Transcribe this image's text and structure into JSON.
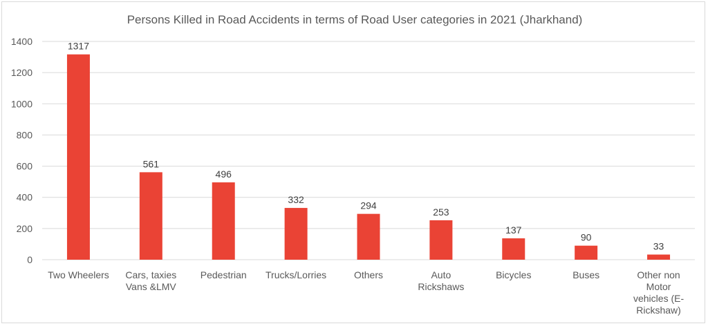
{
  "chart_data": {
    "type": "bar",
    "title": "Persons Killed  in Road Accidents in terms of Road User categories in 2021 (Jharkhand)",
    "categories": [
      [
        "Two Wheelers"
      ],
      [
        "Cars, taxies",
        "Vans &LMV"
      ],
      [
        "Pedestrian"
      ],
      [
        "Trucks/Lorries"
      ],
      [
        "Others"
      ],
      [
        "Auto",
        "Rickshaws"
      ],
      [
        "Bicycles"
      ],
      [
        "Buses"
      ],
      [
        "Other non",
        "Motor",
        "vehicles (E-",
        "Rickshaw)"
      ]
    ],
    "values": [
      1317,
      561,
      496,
      332,
      294,
      253,
      137,
      90,
      33
    ],
    "ylim": [
      0,
      1400
    ],
    "yticks": [
      0,
      200,
      400,
      600,
      800,
      1000,
      1200,
      1400
    ],
    "grid": true,
    "legend": "none",
    "bar_color": "#ea4335"
  }
}
